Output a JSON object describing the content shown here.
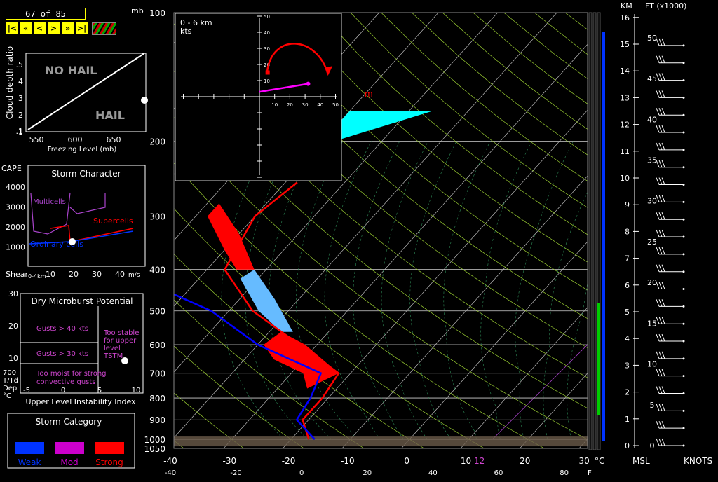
{
  "frame": {
    "counter": "67 of 85",
    "nav": [
      "|<",
      "«",
      "<",
      ">",
      "»",
      ">|"
    ]
  },
  "hail": {
    "ylabel": "Cloud depth ratio",
    "yticks": [
      ".5",
      "4",
      "3",
      "2",
      "1"
    ],
    "xticks": [
      "550",
      "600",
      "650"
    ],
    "xlabel": "Freezing Level (mb)",
    "no_hail": "NO HAIL",
    "hail": "HAIL"
  },
  "storm": {
    "title": "Storm Character",
    "cape": "CAPE",
    "yticks": [
      "4000",
      "3000",
      "2000",
      "1000"
    ],
    "shear": "Shear",
    "shear_sub": "0-4km",
    "xticks": [
      "10",
      "20",
      "30",
      "40"
    ],
    "unit": "m/s",
    "multicells": "Multicells",
    "supercells": "Supercells",
    "ordinary": "Ordinary cells"
  },
  "micro": {
    "title": "Dry Microburst Potential",
    "yticks": [
      "30",
      "20",
      "10"
    ],
    "g40": "Gusts > 40 kts",
    "g30": "Gusts > 30 kts",
    "moist": "Too moist for strong",
    "moist2": "convective gusts",
    "stable1": "Too stable",
    "stable2": "for upper",
    "stable3": "level",
    "stable4": "TSTM",
    "ylab1": "700",
    "ylab2": "T/Td",
    "ylab3": "Dep",
    "ylab4": "°C",
    "xticks": [
      "-5",
      "0",
      "5",
      "10"
    ],
    "xlabel": "Upper Level Instability Index"
  },
  "category": {
    "title": "Storm Category",
    "items": [
      {
        "label": "Weak",
        "color": "#0033ff"
      },
      {
        "label": "Mod",
        "color": "#cc00cc"
      },
      {
        "label": "Strong",
        "color": "#ff0000"
      }
    ]
  },
  "hodo": {
    "title": "0 - 6 km",
    "unit": "kts",
    "xticks": [
      "10",
      "20",
      "30",
      "40",
      "50"
    ],
    "yticks": [
      "50",
      "40",
      "30",
      "20",
      "10"
    ]
  },
  "skewt": {
    "mb": "mb",
    "pticks": [
      "100",
      "200",
      "300",
      "400",
      "500",
      "600",
      "700",
      "800",
      "900",
      "1000",
      "1050"
    ],
    "cticks": [
      "-40",
      "-30",
      "-20",
      "-10",
      "0",
      "10",
      "20",
      "30"
    ],
    "fticks": [
      "-40",
      "-20",
      "0",
      "20",
      "40",
      "60",
      "80"
    ],
    "c_unit": "°C",
    "f_unit": "F",
    "tag_m": "m",
    "tag_12": "12"
  },
  "right": {
    "km": "KM",
    "ft": "FT (x1000)",
    "msl": "MSL",
    "knots": "KNOTS",
    "kmticks": [
      "16",
      "15",
      "14",
      "13",
      "12",
      "11",
      "10",
      "9",
      "8",
      "7",
      "6",
      "5",
      "4",
      "3",
      "2",
      "1",
      "0"
    ],
    "ftticks": [
      "50",
      "45",
      "40",
      "35",
      "30",
      "25",
      "20",
      "15",
      "10",
      "5",
      "0"
    ]
  },
  "colors": {
    "temp": "#ff0000",
    "dew": "#0000ff",
    "cape": "#ff0000",
    "cold": "#66bbff",
    "cap": "#00ffff",
    "accent": "#ffff00"
  },
  "chart_data": {
    "type": "line",
    "title": "",
    "xlabel": "°C",
    "ylabel": "mb",
    "xlim": [
      -40,
      30
    ],
    "ylim": [
      1050,
      100
    ],
    "yscale": "log",
    "series": [
      {
        "temp_c": [
          -17,
          -21,
          -21,
          -22,
          -33,
          -46,
          -57,
          -60,
          -58
        ]
      },
      {
        "dew_c": [
          -16,
          -22,
          -23,
          -25,
          -40,
          -53,
          -75,
          -78,
          -82
        ]
      }
    ],
    "pressure_mb": [
      1000,
      900,
      800,
      700,
      600,
      500,
      400,
      300,
      250
    ]
  }
}
